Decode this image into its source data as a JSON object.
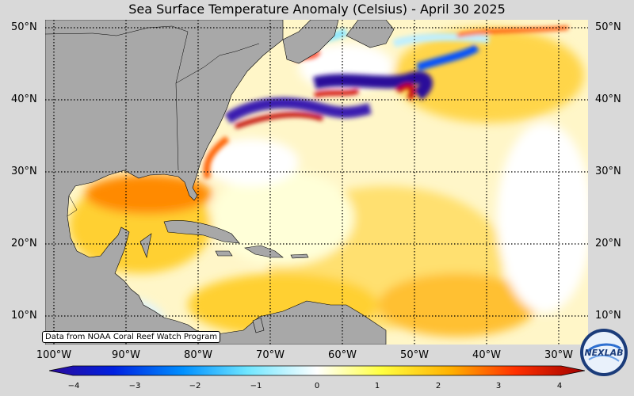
{
  "title": "Sea Surface Temperature Anomaly (Celsius) - April 30 2025",
  "lat_labels": [
    "50°N",
    "40°N",
    "30°N",
    "20°N",
    "10°N"
  ],
  "lon_labels": [
    "100°W",
    "90°W",
    "80°W",
    "70°W",
    "60°W",
    "50°W",
    "40°W",
    "30°W"
  ],
  "source_note": "Data from NOAA Coral Reef Watch Program",
  "colorbar": {
    "ticks": [
      "−4",
      "−3",
      "−2",
      "−1",
      "0",
      "1",
      "2",
      "3",
      "4"
    ],
    "range": [
      -4,
      4
    ],
    "colors": [
      "#2b0a9a",
      "#0020e0",
      "#0090ff",
      "#6fe6ff",
      "#ffffff",
      "#ffff40",
      "#ffb000",
      "#ff3000",
      "#a00000"
    ]
  },
  "map": {
    "land_color": "#a8a8a8",
    "grid": "dotted",
    "lat_range": [
      5,
      52
    ],
    "lon_range": [
      -101,
      -26
    ]
  },
  "logo_text": "NEXLAB"
}
